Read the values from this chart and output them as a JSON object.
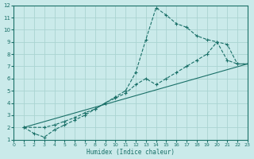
{
  "xlabel": "Humidex (Indice chaleur)",
  "background_color": "#caeaea",
  "grid_color": "#aad4d2",
  "line_color": "#1a7068",
  "xlim": [
    0,
    23
  ],
  "ylim": [
    1,
    12
  ],
  "xticks": [
    0,
    1,
    2,
    3,
    4,
    5,
    6,
    7,
    8,
    9,
    10,
    11,
    12,
    13,
    14,
    15,
    16,
    17,
    18,
    19,
    20,
    21,
    22,
    23
  ],
  "yticks": [
    1,
    2,
    3,
    4,
    5,
    6,
    7,
    8,
    9,
    10,
    11,
    12
  ],
  "series1_x": [
    1,
    2,
    3,
    4,
    5,
    6,
    7,
    8,
    9,
    10,
    11,
    12,
    13,
    14,
    15,
    16,
    17,
    18,
    19,
    20,
    21,
    22,
    23
  ],
  "series1_y": [
    2.0,
    1.5,
    1.2,
    1.8,
    2.2,
    2.6,
    3.0,
    3.5,
    4.0,
    4.5,
    5.0,
    6.5,
    9.2,
    11.8,
    11.2,
    10.5,
    10.2,
    9.5,
    9.2,
    9.0,
    7.5,
    7.2,
    7.2
  ],
  "series2_x": [
    1,
    3,
    4,
    5,
    6,
    7,
    8,
    9,
    10,
    11,
    12,
    13,
    14,
    15,
    16,
    17,
    18,
    19,
    20,
    21,
    22,
    23
  ],
  "series2_y": [
    2.0,
    2.0,
    2.2,
    2.5,
    2.8,
    3.2,
    3.5,
    4.0,
    4.4,
    4.8,
    5.5,
    6.0,
    5.5,
    6.0,
    6.5,
    7.0,
    7.5,
    8.0,
    9.0,
    8.8,
    7.2,
    7.2
  ],
  "series3_x": [
    1,
    23
  ],
  "series3_y": [
    2.0,
    7.2
  ]
}
